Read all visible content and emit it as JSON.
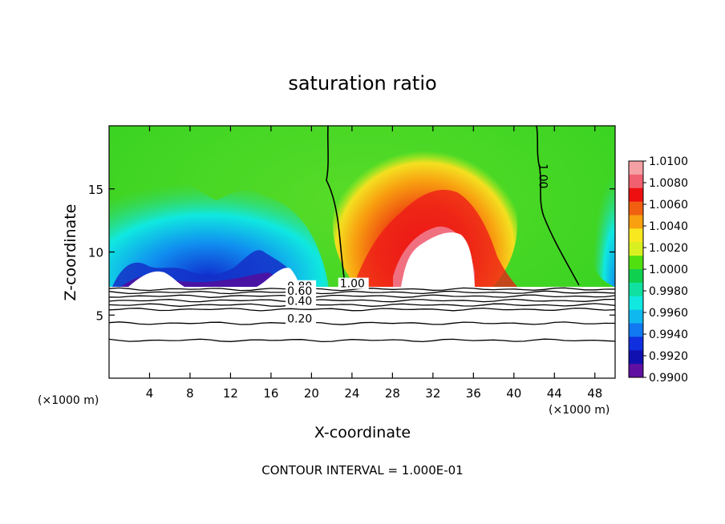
{
  "chart_data": {
    "type": "heatmap",
    "title": "saturation ratio",
    "xlabel": "X-coordinate",
    "ylabel": "Z-coordinate",
    "x_unit_left": "(×1000 m)",
    "x_unit_right": "(×1000 m)",
    "xlim": [
      0,
      50
    ],
    "ylim": [
      0,
      20
    ],
    "x_ticks": [
      4,
      8,
      12,
      16,
      20,
      24,
      28,
      32,
      36,
      40,
      44,
      48
    ],
    "y_ticks": [
      5,
      10,
      15
    ],
    "footnote": "CONTOUR INTERVAL = 1.000E-01",
    "colorbar": {
      "labels": [
        "1.0100",
        "1.0080",
        "1.0060",
        "1.0040",
        "1.0020",
        "1.0000",
        "0.9980",
        "0.9960",
        "0.9940",
        "0.9920",
        "0.9900"
      ],
      "colors": [
        "#f4a0a4",
        "#f06070",
        "#ee1010",
        "#f06010",
        "#f8a010",
        "#f8e820",
        "#d8f020",
        "#50e010",
        "#10d050",
        "#10e0a0",
        "#10e8e0",
        "#10b8f0",
        "#1078f0",
        "#1030e0",
        "#1010b0",
        "#6010a0"
      ]
    },
    "filled_field": {
      "ground_level_z": 7.2,
      "description_free": true,
      "background": "#40d820",
      "regions": [
        {
          "kind": "subsaturated",
          "x": [
            0,
            21.5
          ],
          "peak_min": 0.992
        },
        {
          "kind": "supersaturated",
          "x": [
            23,
            40
          ],
          "peak_max": 1.01
        }
      ]
    },
    "contour_labels": [
      {
        "text": "1.00",
        "x": 22.8,
        "y": 7.2
      },
      {
        "text": "1.00",
        "x": 42.5,
        "y": 17.0,
        "rotate": 90
      },
      {
        "text": "0.80",
        "x": 17.6,
        "y": 7.0
      },
      {
        "text": "0.60",
        "x": 17.6,
        "y": 6.6
      },
      {
        "text": "0.40",
        "x": 17.6,
        "y": 5.8
      },
      {
        "text": "0.20",
        "x": 17.6,
        "y": 4.4
      }
    ],
    "contour_levels_below": [
      0.8,
      0.6,
      0.4,
      0.2,
      0.0
    ],
    "contour_level_heights": [
      7.05,
      6.8,
      6.5,
      6.15,
      5.8,
      5.45,
      4.35,
      3.0
    ]
  }
}
